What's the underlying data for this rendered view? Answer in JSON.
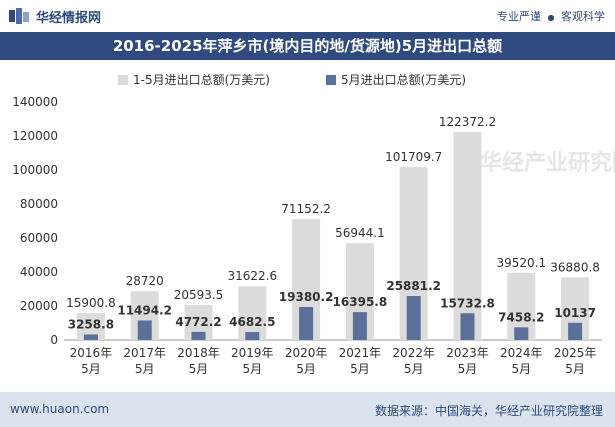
{
  "header": {
    "brand": "华经情报网",
    "slogan_left": "专业严谨",
    "slogan_bullet": "●",
    "slogan_right": "客观科学",
    "title": "2016-2025年萍乡市(境内目的地/货源地)5月进出口总额"
  },
  "footer": {
    "url": "www.huaon.com",
    "source": "数据来源：中国海关，华经产业研究院整理"
  },
  "watermark": "华经产业研究院",
  "colors": {
    "series_1": "#dcdcdc",
    "series_2": "#5c6f99",
    "brand": "#2f4a7e"
  },
  "chart_data": {
    "type": "bar",
    "title": "2016-2025年萍乡市(境内目的地/货源地)5月进出口总额",
    "categories": [
      [
        "2016年",
        "5月"
      ],
      [
        "2017年",
        "5月"
      ],
      [
        "2018年",
        "5月"
      ],
      [
        "2019年",
        "5月"
      ],
      [
        "2020年",
        "5月"
      ],
      [
        "2021年",
        "5月"
      ],
      [
        "2022年",
        "5月"
      ],
      [
        "2023年",
        "5月"
      ],
      [
        "2024年",
        "5月"
      ],
      [
        "2025年",
        "5月"
      ]
    ],
    "series": [
      {
        "name": "1-5月进出口总额(万美元)",
        "values": [
          15900.8,
          28720,
          20593.5,
          31622.6,
          71152.2,
          56944.1,
          101709.7,
          122372.2,
          39520.1,
          36880.8
        ],
        "labels": [
          "15900.8",
          "28720",
          "20593.5",
          "31622.6",
          "71152.2",
          "56944.1",
          "101709.7",
          "122372.2",
          "39520.1",
          "36880.8"
        ]
      },
      {
        "name": "5月进出口总额(万美元)",
        "values": [
          3258.8,
          11494.2,
          4772.2,
          4682.5,
          19380.2,
          16395.8,
          25881.2,
          15732.8,
          7458.2,
          10137
        ],
        "labels": [
          "3258.8",
          "11494.2",
          "4772.2",
          "4682.5",
          "19380.2",
          "16395.8",
          "25881.2",
          "15732.8",
          "7458.2",
          "10137"
        ]
      }
    ],
    "ylim": [
      0,
      140000
    ],
    "yticks": [
      "0",
      "20000",
      "40000",
      "60000",
      "80000",
      "100000",
      "120000",
      "140000"
    ],
    "legend": "top"
  }
}
